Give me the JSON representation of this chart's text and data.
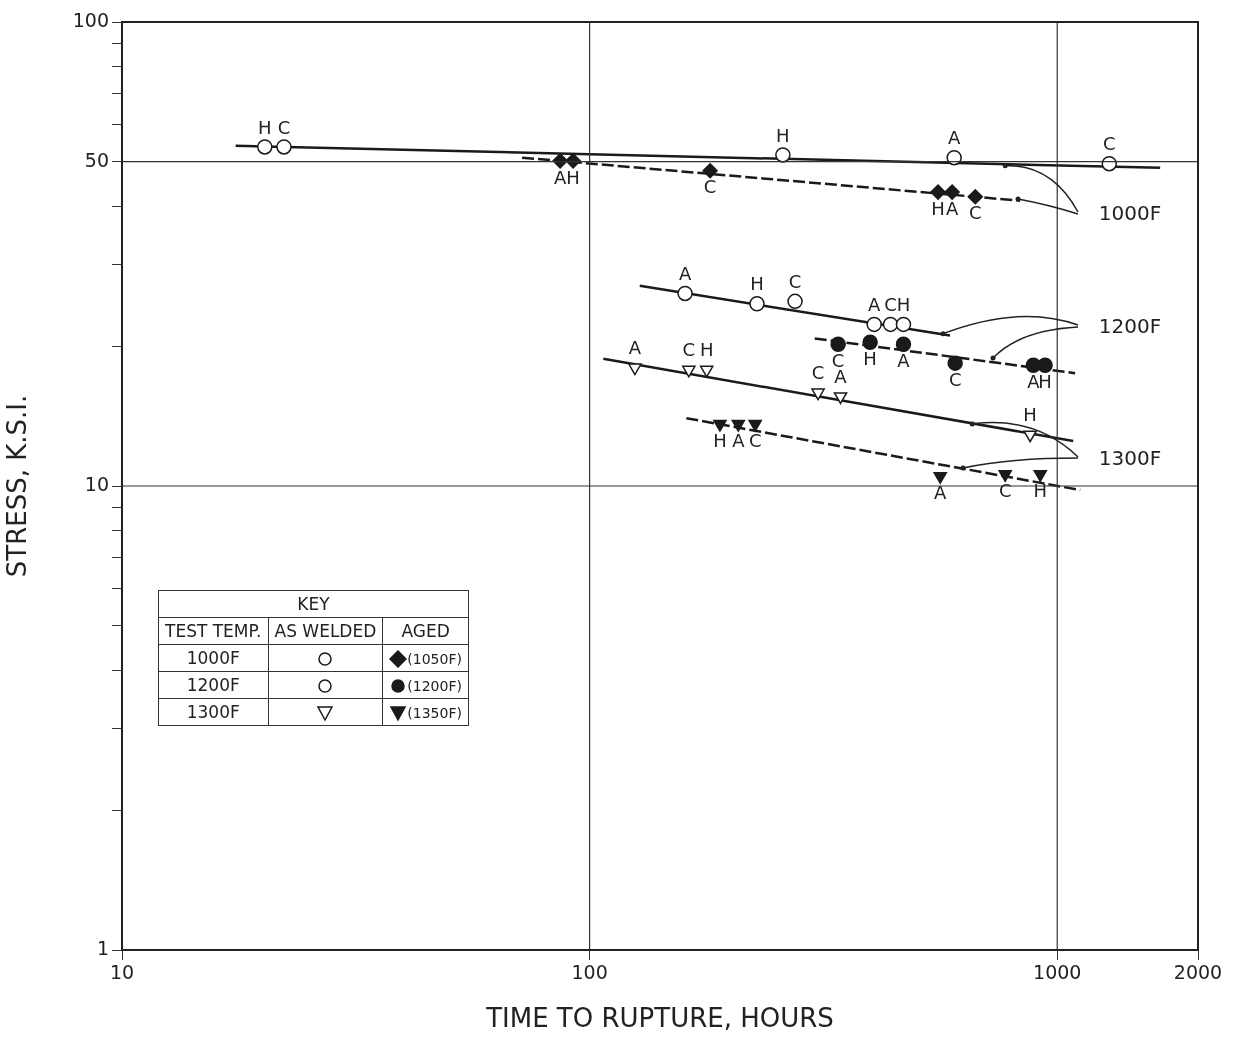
{
  "chart_data": {
    "type": "scatter",
    "xlabel": "TIME TO RUPTURE, HOURS",
    "ylabel": "STRESS, K.S.I.",
    "legend": "bottom left",
    "legend_title": "KEY",
    "log": "xy",
    "grid": false,
    "xlim": [
      10,
      2000
    ],
    "xticks": [
      10,
      100,
      1000,
      2000
    ],
    "ylim": [
      1,
      100
    ],
    "yticks": [
      1,
      {
        "value": 2,
        "label": null
      },
      {
        "value": 3,
        "label": null
      },
      {
        "value": 4,
        "label": null
      },
      {
        "value": 5,
        "label": null
      },
      {
        "value": 6,
        "label": null
      },
      {
        "value": 7,
        "label": null
      },
      {
        "value": 8,
        "label": null
      },
      {
        "value": 9,
        "label": null
      },
      10,
      {
        "value": 20,
        "label": null
      },
      {
        "value": 30,
        "label": null
      },
      {
        "value": 40,
        "label": null
      },
      50,
      {
        "value": 60,
        "label": null
      },
      {
        "value": 70,
        "label": null
      },
      {
        "value": 80,
        "label": null
      },
      {
        "value": 90,
        "label": null
      },
      100
    ],
    "ref_lines": [
      {
        "axis": "y",
        "value": 10
      },
      {
        "axis": "y",
        "value": 50
      },
      {
        "axis": "x",
        "value": 100
      },
      {
        "axis": "x",
        "value": 1000
      }
    ],
    "annotations": [
      "TEST TEMP.",
      "AS WELDED",
      "AGED",
      "1000F",
      "1200F",
      "1300F",
      {
        "text": "1000F",
        "x": 774,
        "y": 49
      },
      {
        "text": "1200F",
        "x": 570,
        "y": 21.3
      },
      {
        "text": "1300F",
        "x": 658,
        "y": 13.6
      }
    ],
    "series": [
      {
        "color": "#ffffff",
        "marker": "circle",
        "x": [
          20.2,
          22.2,
          259,
          602,
          1292
        ],
        "values": [
          53.8,
          53.8,
          51.7,
          51,
          49.5
        ],
        "value_labels": [
          "H",
          "C",
          "H",
          "A",
          "C"
        ]
      },
      {
        "name": "(1050F)",
        "color": "#1a1a1a",
        "marker": "diamond",
        "x": [
          86.5,
          92.2,
          181,
          556,
          596,
          668
        ],
        "values": [
          50.2,
          50.2,
          47.8,
          43,
          43,
          42
        ],
        "value_labels": [
          "A",
          "H",
          "C",
          "H",
          "A",
          "C"
        ]
      },
      {
        "color": "#ffffff",
        "marker": "circle",
        "x": [
          160,
          228,
          275,
          406,
          440,
          469
        ],
        "values": [
          26,
          24.7,
          25,
          22.3,
          22.3,
          22.3
        ],
        "value_labels": [
          "A",
          "H",
          "C",
          "A",
          "C",
          "H"
        ]
      },
      {
        "name": "(1200F)",
        "color": "#1a1a1a",
        "marker": "circle",
        "x": [
          340,
          398,
          469,
          605,
          889,
          942
        ],
        "values": [
          20.2,
          20.4,
          20.2,
          18.4,
          18.2,
          18.2
        ],
        "value_labels": [
          "C",
          "H",
          "A",
          "C",
          "A",
          "H"
        ]
      },
      {
        "color": "#ffffff",
        "marker": "triangle",
        "x": [
          125,
          163,
          178,
          308,
          344,
          875
        ],
        "values": [
          18,
          17.8,
          17.8,
          15.9,
          15.6,
          12.9
        ],
        "value_labels": [
          "A",
          "C",
          "H",
          "C",
          "A",
          "H"
        ]
      },
      {
        "name": "(1350F)",
        "color": "#1a1a1a",
        "marker": "triangle",
        "x": [
          190,
          208,
          226,
          562,
          774,
          920
        ],
        "values": [
          13.6,
          13.6,
          13.6,
          10.5,
          10.6,
          10.6
        ],
        "value_labels": [
          "H",
          "A",
          "C",
          "A",
          "C",
          "H"
        ]
      },
      {
        "type": "line",
        "color": "#1a1a1a",
        "line_style": "solid",
        "x": [
          17.5,
          1660
        ],
        "values": [
          54.1,
          48.5
        ]
      },
      {
        "type": "line",
        "color": "#1a1a1a",
        "line_style": "dashed",
        "x": [
          71.7,
          833
        ],
        "values": [
          51,
          41.2
        ]
      },
      {
        "type": "line",
        "color": "#1a1a1a",
        "line_style": "solid",
        "x": [
          128,
          590
        ],
        "values": [
          27,
          21.1
        ]
      },
      {
        "type": "line",
        "color": "#1a1a1a",
        "line_style": "dashed",
        "x": [
          303,
          1092
        ],
        "values": [
          20.8,
          17.5
        ]
      },
      {
        "type": "line",
        "color": "#1a1a1a",
        "line_style": "solid",
        "x": [
          107,
          1082
        ],
        "values": [
          18.8,
          12.5
        ]
      },
      {
        "type": "line",
        "color": "#1a1a1a",
        "line_style": "dashed",
        "x": [
          161,
          1120
        ],
        "values": [
          14,
          9.8
        ]
      }
    ]
  }
}
